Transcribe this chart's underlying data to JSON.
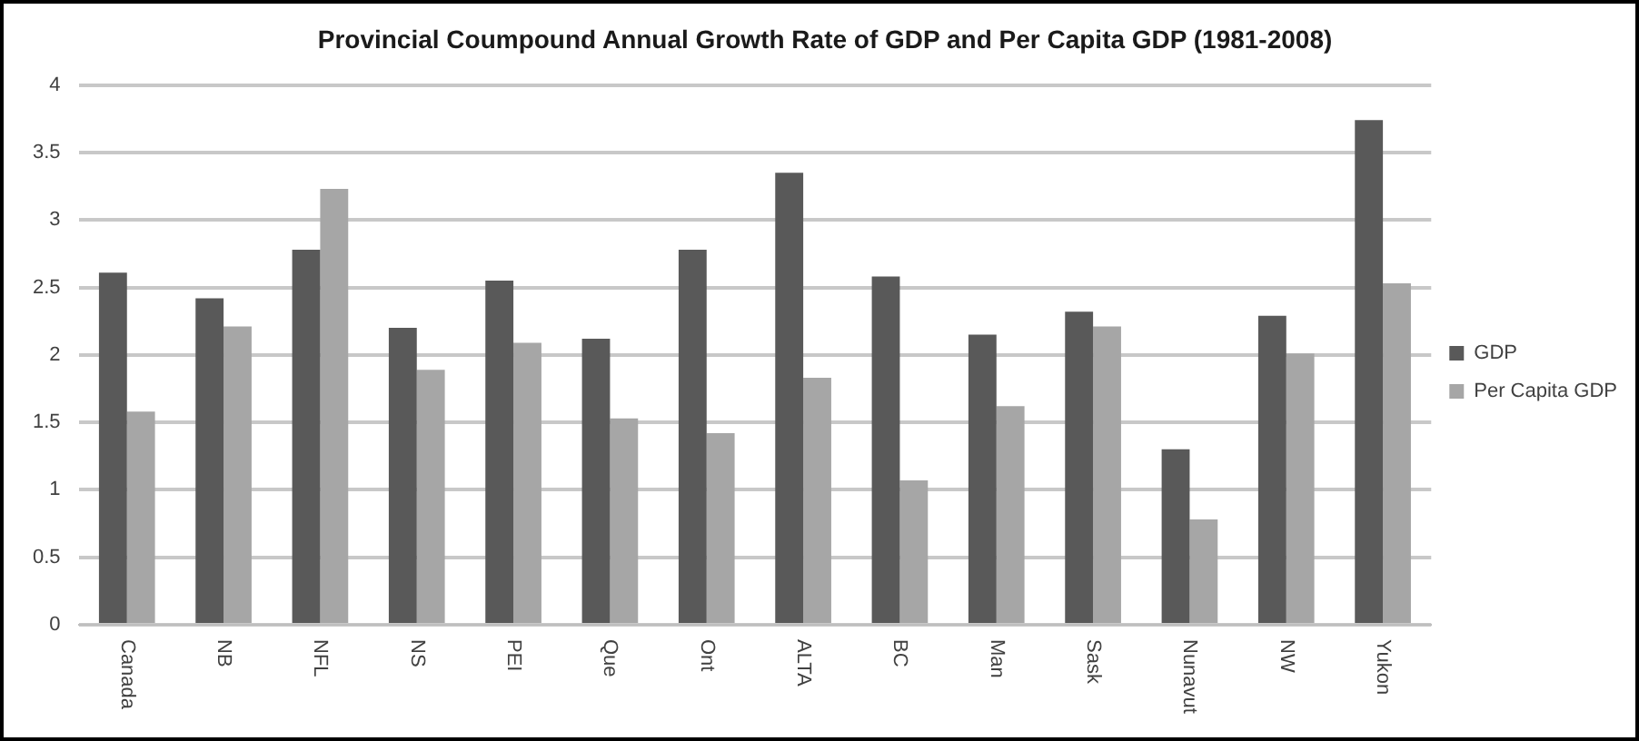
{
  "chart_data": {
    "type": "bar",
    "title": "Provincial Coumpound Annual Growth Rate of GDP and Per Capita GDP (1981-2008)",
    "categories": [
      "Canada",
      "NB",
      "NFL",
      "NS",
      "PEI",
      "Que",
      "Ont",
      "ALTA",
      "BC",
      "Man",
      "Sask",
      "Nunavut",
      "NW",
      "Yukon"
    ],
    "series": [
      {
        "name": "GDP",
        "color": "#595959",
        "values": [
          2.61,
          2.42,
          2.78,
          2.2,
          2.55,
          2.12,
          2.78,
          3.35,
          2.58,
          2.15,
          2.32,
          1.3,
          2.29,
          3.74
        ]
      },
      {
        "name": "Per Capita GDP",
        "color": "#a6a6a6",
        "values": [
          1.58,
          2.21,
          3.23,
          1.89,
          2.09,
          1.53,
          1.42,
          1.83,
          1.07,
          1.62,
          2.21,
          0.78,
          2.01,
          2.53
        ]
      }
    ],
    "ylim": [
      0,
      4
    ],
    "yticks": [
      0,
      0.5,
      1,
      1.5,
      2,
      2.5,
      3,
      3.5,
      4
    ],
    "grid": "y",
    "legend": "right"
  }
}
